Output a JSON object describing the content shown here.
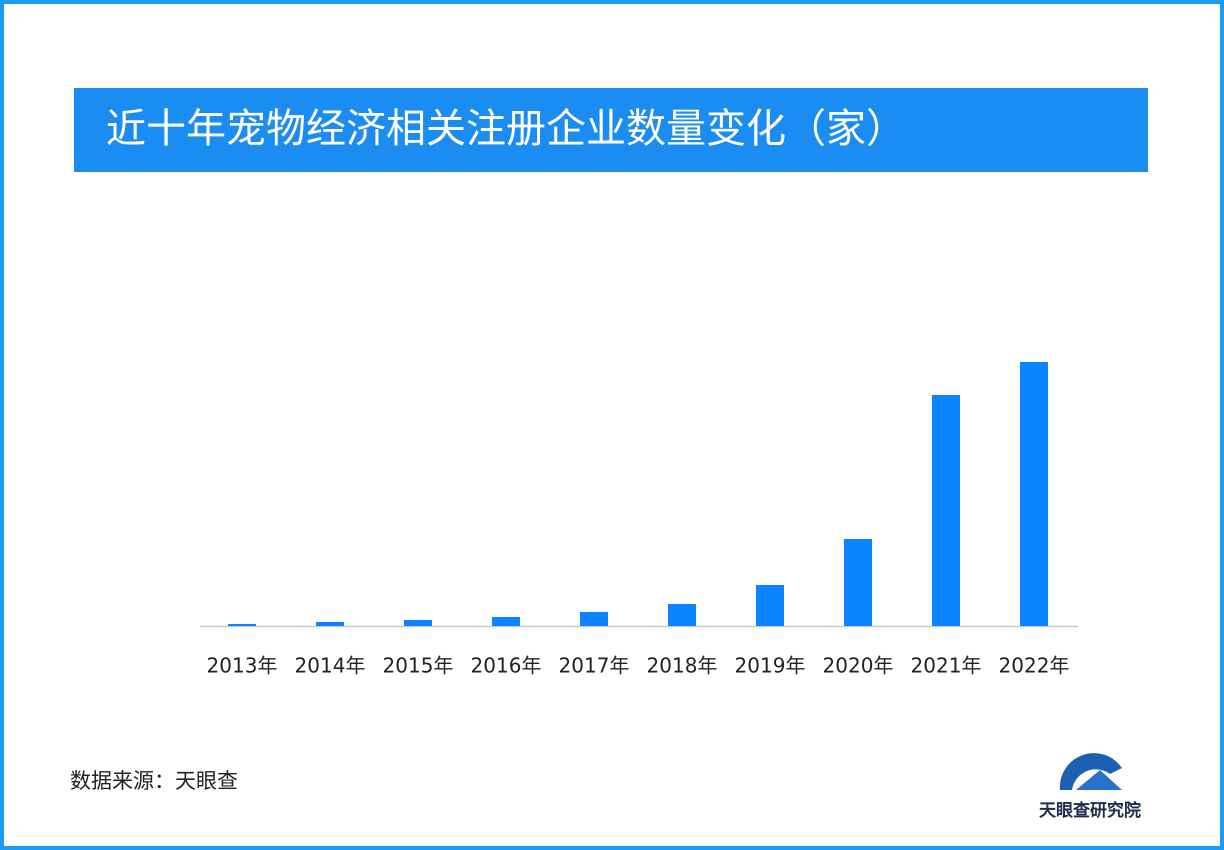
{
  "chart_data": {
    "type": "bar",
    "title": "近十年宠物经济相关注册企业数量变化（家）",
    "categories": [
      "2013年",
      "2014年",
      "2015年",
      "2016年",
      "2017年",
      "2018年",
      "2019年",
      "2020年",
      "2021年",
      "2022年"
    ],
    "values": [
      2,
      4,
      6,
      9,
      14,
      22,
      41,
      87,
      231,
      264
    ],
    "color": "#0a84ff",
    "ylim": [
      0,
      264
    ]
  },
  "source": "数据来源：天眼查",
  "logo_text": "天眼查研究院"
}
